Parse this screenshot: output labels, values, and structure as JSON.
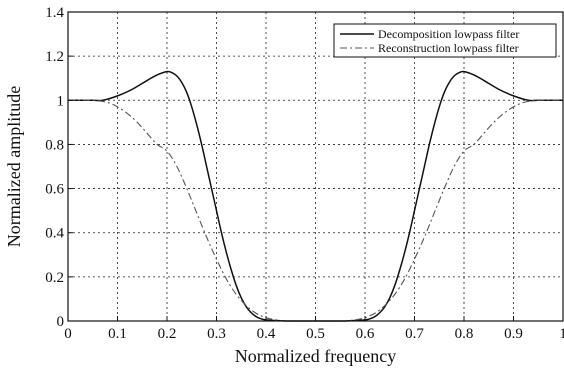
{
  "chart_data": {
    "type": "line",
    "title": "",
    "xlabel": "Normalized frequency",
    "ylabel": "Normalized amplitude",
    "xlim": [
      0,
      1
    ],
    "ylim": [
      0,
      1.4
    ],
    "xticks": [
      "0",
      "0.1",
      "0.2",
      "0.3",
      "0.4",
      "0.5",
      "0.6",
      "0.7",
      "0.8",
      "0.9",
      "1"
    ],
    "yticks": [
      "0",
      "0.2",
      "0.4",
      "0.6",
      "0.8",
      "1",
      "1.2",
      "1.4"
    ],
    "grid": true,
    "grid_style": "dotted",
    "legend_position": "top-right",
    "series": [
      {
        "name": "Decomposition lowpass filter",
        "line_style": "solid",
        "color": "#111111",
        "x": [
          0.0,
          0.05,
          0.07,
          0.1,
          0.13,
          0.16,
          0.18,
          0.2,
          0.21,
          0.22,
          0.23,
          0.24,
          0.25,
          0.26,
          0.27,
          0.28,
          0.29,
          0.3,
          0.31,
          0.32,
          0.33,
          0.34,
          0.35,
          0.36,
          0.37,
          0.38,
          0.39,
          0.4,
          0.42,
          0.44,
          0.45,
          0.5,
          0.55,
          0.56,
          0.58,
          0.6,
          0.61,
          0.62,
          0.63,
          0.64,
          0.65,
          0.66,
          0.67,
          0.68,
          0.69,
          0.7,
          0.71,
          0.72,
          0.73,
          0.74,
          0.75,
          0.76,
          0.77,
          0.78,
          0.79,
          0.8,
          0.82,
          0.84,
          0.87,
          0.9,
          0.93,
          0.95,
          1.0
        ],
        "y": [
          1.0,
          1.0,
          1.0,
          1.02,
          1.05,
          1.09,
          1.115,
          1.13,
          1.125,
          1.11,
          1.08,
          1.035,
          0.97,
          0.89,
          0.8,
          0.7,
          0.6,
          0.5,
          0.4,
          0.31,
          0.23,
          0.16,
          0.105,
          0.065,
          0.038,
          0.02,
          0.01,
          0.005,
          0.002,
          0.0,
          0.0,
          0.0,
          0.0,
          0.0,
          0.002,
          0.005,
          0.01,
          0.02,
          0.038,
          0.065,
          0.105,
          0.16,
          0.23,
          0.31,
          0.4,
          0.5,
          0.6,
          0.7,
          0.8,
          0.89,
          0.97,
          1.035,
          1.08,
          1.11,
          1.125,
          1.13,
          1.115,
          1.09,
          1.05,
          1.02,
          1.0,
          1.0,
          1.0
        ]
      },
      {
        "name": "Reconstruction lowpass filter",
        "line_style": "dash-dot",
        "color": "#555555",
        "x": [
          0.0,
          0.05,
          0.08,
          0.1,
          0.12,
          0.14,
          0.16,
          0.18,
          0.2,
          0.22,
          0.24,
          0.26,
          0.28,
          0.3,
          0.32,
          0.34,
          0.36,
          0.38,
          0.4,
          0.42,
          0.44,
          0.46,
          0.5,
          0.54,
          0.56,
          0.58,
          0.6,
          0.62,
          0.64,
          0.66,
          0.68,
          0.7,
          0.72,
          0.74,
          0.76,
          0.78,
          0.8,
          0.82,
          0.84,
          0.86,
          0.88,
          0.9,
          0.92,
          0.95,
          1.0
        ],
        "y": [
          1.0,
          1.0,
          0.99,
          0.97,
          0.94,
          0.9,
          0.85,
          0.8,
          0.77,
          0.7,
          0.6,
          0.49,
          0.38,
          0.28,
          0.19,
          0.12,
          0.07,
          0.035,
          0.015,
          0.005,
          0.0,
          0.0,
          0.0,
          0.0,
          0.0,
          0.005,
          0.015,
          0.035,
          0.07,
          0.12,
          0.19,
          0.28,
          0.38,
          0.49,
          0.6,
          0.7,
          0.77,
          0.8,
          0.85,
          0.9,
          0.94,
          0.97,
          0.99,
          1.0,
          1.0
        ]
      }
    ]
  }
}
